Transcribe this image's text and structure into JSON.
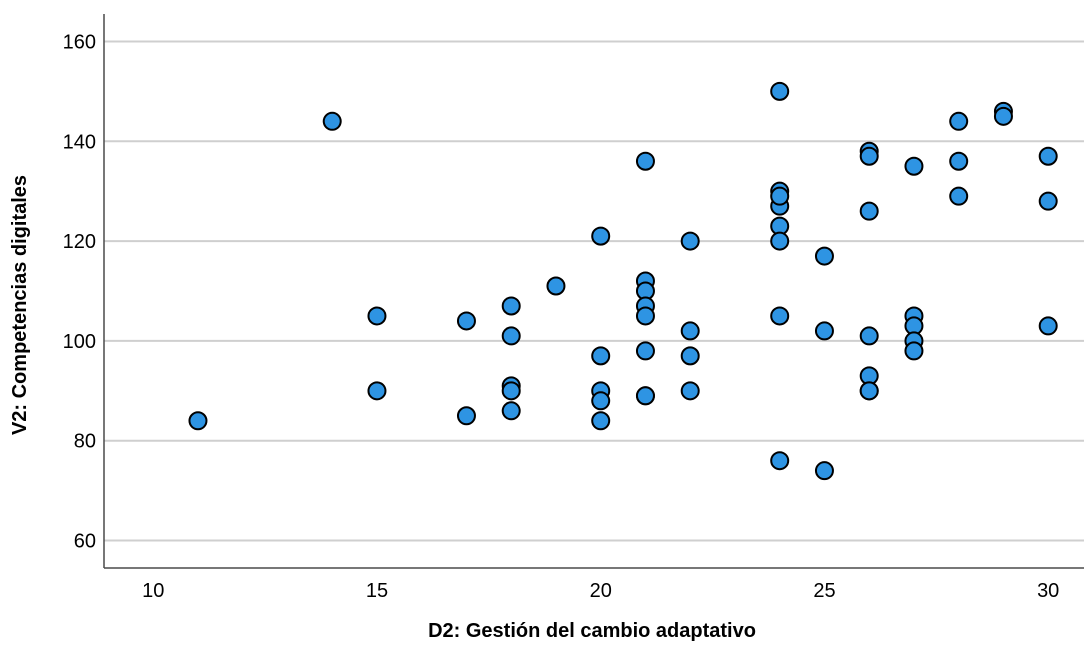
{
  "chart_data": {
    "type": "scatter",
    "title": "",
    "xlabel": "D2: Gestión del cambio adaptativo",
    "ylabel": "V2: Competencias digitales",
    "xlim": [
      8.9,
      30.8
    ],
    "ylim": [
      54.5,
      165.5
    ],
    "xticks": [
      10,
      15,
      20,
      25,
      30
    ],
    "yticks": [
      60,
      80,
      100,
      120,
      140,
      160
    ],
    "grid": "horizontal",
    "legend": "none",
    "colors": {
      "marker_fill": "#2e94e3",
      "marker_edge": "#000000",
      "grid": "#cfcfcf"
    },
    "series": [
      {
        "x": [
          11,
          14,
          15,
          15,
          17,
          17,
          18,
          18,
          18,
          18,
          18,
          19,
          20,
          20,
          20,
          20,
          20,
          21,
          21,
          21,
          21,
          21,
          21,
          21,
          21,
          22,
          22,
          22,
          22,
          24,
          24,
          24,
          24,
          24,
          24,
          24,
          24,
          25,
          25,
          25,
          26,
          26,
          26,
          26,
          26,
          26,
          26,
          27,
          27,
          27,
          27,
          27,
          28,
          28,
          28,
          29,
          29,
          30,
          30,
          30
        ],
        "y": [
          84,
          144,
          105,
          90,
          104,
          85,
          107,
          101,
          91,
          90,
          86,
          111,
          121,
          97,
          90,
          88,
          84,
          136,
          112,
          110,
          107,
          105,
          98,
          89,
          89,
          120,
          102,
          97,
          90,
          150,
          130,
          127,
          123,
          120,
          105,
          76,
          129,
          117,
          102,
          74,
          138,
          137,
          126,
          101,
          93,
          90,
          90,
          135,
          105,
          103,
          100,
          98,
          144,
          136,
          129,
          146,
          145,
          137,
          128,
          103
        ]
      }
    ]
  }
}
